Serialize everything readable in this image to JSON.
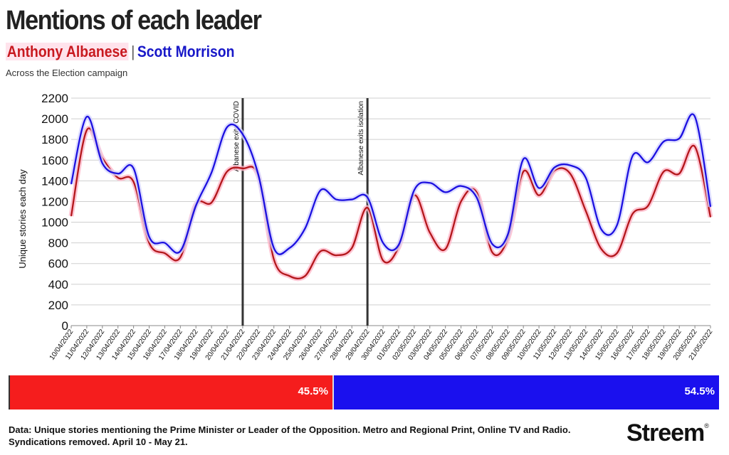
{
  "header": {
    "title": "Mentions of each leader",
    "legend_albanese": "Anthony Albanese",
    "legend_separator": "|",
    "legend_morrison": "Scott Morrison",
    "subtitle": "Across the Election campaign"
  },
  "colors": {
    "albanese": "#b3171b",
    "albanese_halo": "#ffb7c8",
    "morrison": "#1c10e0",
    "morrison_halo": "#d4d4ff",
    "annotation_line": "#333333",
    "grid": "#cfcfcf"
  },
  "chart_data": {
    "type": "line",
    "title": "Mentions of each leader",
    "ylabel": "Unique stories each day",
    "xlabel": "",
    "ylim": [
      0,
      2200
    ],
    "yticks": [
      0,
      200,
      400,
      600,
      800,
      1000,
      1200,
      1400,
      1600,
      1800,
      2000,
      2200
    ],
    "grid": true,
    "categories": [
      "10/04/2022",
      "11/04/2022",
      "12/04/2022",
      "13/04/2022",
      "14/04/2022",
      "15/04/2022",
      "16/04/2022",
      "17/04/2022",
      "18/04/2022",
      "19/04/2022",
      "20/04/2022",
      "21/04/2022",
      "22/04/2022",
      "23/04/2022",
      "24/04/2022",
      "25/04/2022",
      "26/04/2022",
      "27/04/2022",
      "28/04/2022",
      "29/04/2022",
      "30/04/2022",
      "01/05/2022",
      "02/05/2022",
      "03/05/2022",
      "04/05/2022",
      "05/05/2022",
      "06/05/2022",
      "07/05/2022",
      "08/05/2022",
      "09/05/2022",
      "10/05/2022",
      "11/05/2022",
      "12/05/2022",
      "13/05/2022",
      "14/05/2022",
      "15/05/2022",
      "16/05/2022",
      "17/05/2022",
      "18/05/2022",
      "19/05/2022",
      "20/05/2022",
      "21/05/2022"
    ],
    "series": [
      {
        "name": "Anthony Albanese",
        "values": [
          1060,
          1890,
          1620,
          1430,
          1390,
          800,
          700,
          660,
          1170,
          1190,
          1490,
          1520,
          1450,
          640,
          480,
          480,
          720,
          680,
          750,
          1140,
          630,
          760,
          1260,
          900,
          740,
          1200,
          1290,
          710,
          840,
          1490,
          1260,
          1500,
          1470,
          1110,
          740,
          700,
          1080,
          1160,
          1490,
          1470,
          1730,
          1050
        ]
      },
      {
        "name": "Scott Morrison",
        "values": [
          1370,
          2020,
          1570,
          1470,
          1520,
          860,
          800,
          720,
          1160,
          1480,
          1920,
          1850,
          1460,
          750,
          750,
          940,
          1310,
          1220,
          1220,
          1240,
          800,
          780,
          1310,
          1380,
          1290,
          1350,
          1240,
          790,
          880,
          1610,
          1330,
          1530,
          1550,
          1430,
          930,
          970,
          1640,
          1580,
          1780,
          1810,
          2020,
          1150
        ]
      }
    ],
    "annotations": [
      {
        "category": "21/04/2022",
        "text": "Albanese exits COVID"
      },
      {
        "category": "29/04/2022",
        "text": "Albanese exits isolation"
      }
    ]
  },
  "share_bar": {
    "albanese_pct": 45.5,
    "albanese_label": "45.5%",
    "morrison_pct": 54.5,
    "morrison_label": "54.5%"
  },
  "footer": {
    "note": "Data: Unique stories mentioning the Prime Minister or Leader of the Opposition. Metro and Regional Print, Online TV and Radio. Syndications removed. April 10 - May 21.",
    "logo": "Streem",
    "logo_mark": "®"
  }
}
